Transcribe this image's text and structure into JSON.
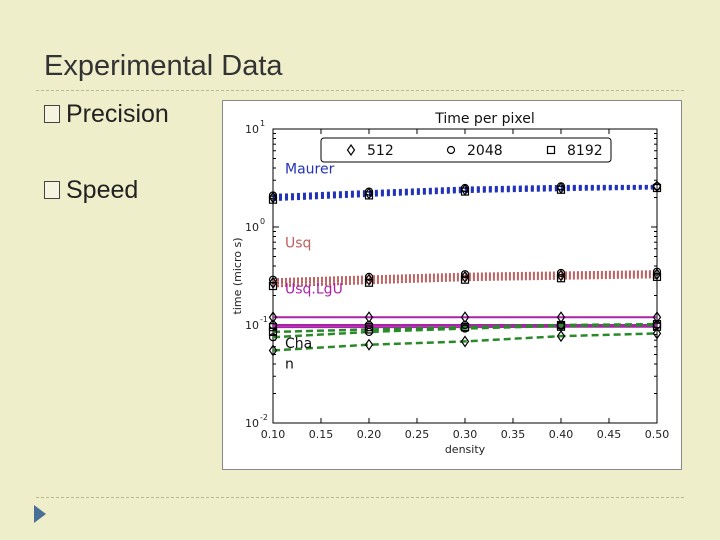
{
  "slide": {
    "title": "Experimental Data",
    "bullets": [
      "Precision",
      "Speed"
    ]
  },
  "colors": {
    "background": "#eeeecb",
    "maurer": "#2233bb",
    "usq": "#c06060",
    "usqlgu": "#aa22aa",
    "chan": "#2a8a2a",
    "nav_arrow": "#4a6f96"
  },
  "chart_data": {
    "type": "line",
    "title": "Time per pixel",
    "xlabel": "density",
    "ylabel": "time (micro s)",
    "yscale": "log",
    "xlim": [
      0.1,
      0.5
    ],
    "ylim": [
      0.01,
      10
    ],
    "xticks": [
      "0.10",
      "0.15",
      "0.20",
      "0.25",
      "0.30",
      "0.35",
      "0.40",
      "0.45",
      "0.50"
    ],
    "yticks": [
      {
        "base": "10",
        "exp": "1"
      },
      {
        "base": "10",
        "exp": "0"
      },
      {
        "base": "10",
        "exp": "-1"
      },
      {
        "base": "10",
        "exp": "-2"
      }
    ],
    "legend": {
      "position": "top",
      "entries": [
        {
          "label": "512",
          "marker": "diamond"
        },
        {
          "label": "2048",
          "marker": "circle"
        },
        {
          "label": "8192",
          "marker": "square"
        }
      ]
    },
    "x": [
      0.1,
      0.2,
      0.3,
      0.4,
      0.5
    ],
    "series": [
      {
        "name": "Maurer",
        "size": "512",
        "values": [
          2.0,
          2.2,
          2.4,
          2.5,
          2.6
        ]
      },
      {
        "name": "Maurer",
        "size": "2048",
        "values": [
          2.1,
          2.3,
          2.5,
          2.6,
          2.6
        ]
      },
      {
        "name": "Maurer",
        "size": "8192",
        "values": [
          1.9,
          2.1,
          2.3,
          2.4,
          2.5
        ]
      },
      {
        "name": "Usq",
        "size": "512",
        "values": [
          0.27,
          0.29,
          0.31,
          0.32,
          0.33
        ]
      },
      {
        "name": "Usq",
        "size": "2048",
        "values": [
          0.29,
          0.31,
          0.33,
          0.34,
          0.35
        ]
      },
      {
        "name": "Usq",
        "size": "8192",
        "values": [
          0.25,
          0.27,
          0.29,
          0.3,
          0.31
        ]
      },
      {
        "name": "UsqLgU",
        "size": "512",
        "values": [
          0.12,
          0.12,
          0.12,
          0.12,
          0.12
        ]
      },
      {
        "name": "UsqLgU",
        "size": "2048",
        "values": [
          0.1,
          0.1,
          0.1,
          0.1,
          0.1
        ]
      },
      {
        "name": "UsqLgU",
        "size": "8192",
        "values": [
          0.095,
          0.095,
          0.095,
          0.096,
          0.096
        ]
      },
      {
        "name": "Chan",
        "size": "512",
        "values": [
          0.055,
          0.063,
          0.068,
          0.077,
          0.082
        ]
      },
      {
        "name": "Chan",
        "size": "2048",
        "values": [
          0.075,
          0.085,
          0.092,
          0.098,
          0.1
        ]
      },
      {
        "name": "Chan",
        "size": "8192",
        "values": [
          0.085,
          0.09,
          0.095,
          0.1,
          0.102
        ]
      }
    ],
    "annotations": [
      {
        "text": "Maurer",
        "anchor_x": 0.1,
        "anchor_y": 3.5
      },
      {
        "text": "Usq",
        "anchor_x": 0.1,
        "anchor_y": 0.62
      },
      {
        "text": "Usq.LgU",
        "anchor_x": 0.1,
        "anchor_y": 0.21
      },
      {
        "text": "Cha",
        "anchor_x": 0.1,
        "anchor_y": 0.058
      },
      {
        "text": "n",
        "anchor_x": 0.1,
        "anchor_y": 0.036
      }
    ]
  }
}
